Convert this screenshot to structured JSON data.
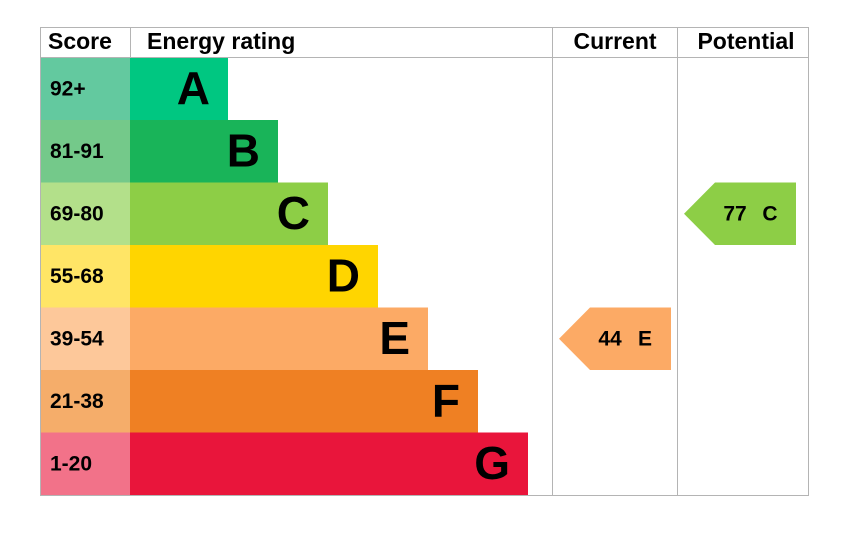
{
  "header": {
    "score": "Score",
    "rating": "Energy rating",
    "current": "Current",
    "potential": "Potential"
  },
  "bands": [
    {
      "score": "92+",
      "letter": "A",
      "color": "#00c781",
      "score_color": "#63c99f"
    },
    {
      "score": "81-91",
      "letter": "B",
      "color": "#19b459",
      "score_color": "#74c98a"
    },
    {
      "score": "69-80",
      "letter": "C",
      "color": "#8dce46",
      "score_color": "#b3e08a"
    },
    {
      "score": "55-68",
      "letter": "D",
      "color": "#ffd500",
      "score_color": "#ffe566"
    },
    {
      "score": "39-54",
      "letter": "E",
      "color": "#fcaa65",
      "score_color": "#fdc89a"
    },
    {
      "score": "21-38",
      "letter": "F",
      "color": "#ef8023",
      "score_color": "#f5ad6a"
    },
    {
      "score": "1-20",
      "letter": "G",
      "color": "#e9153b",
      "score_color": "#f27289"
    }
  ],
  "current": {
    "value": 44,
    "letter": "E"
  },
  "potential": {
    "value": 77,
    "letter": "C"
  }
}
